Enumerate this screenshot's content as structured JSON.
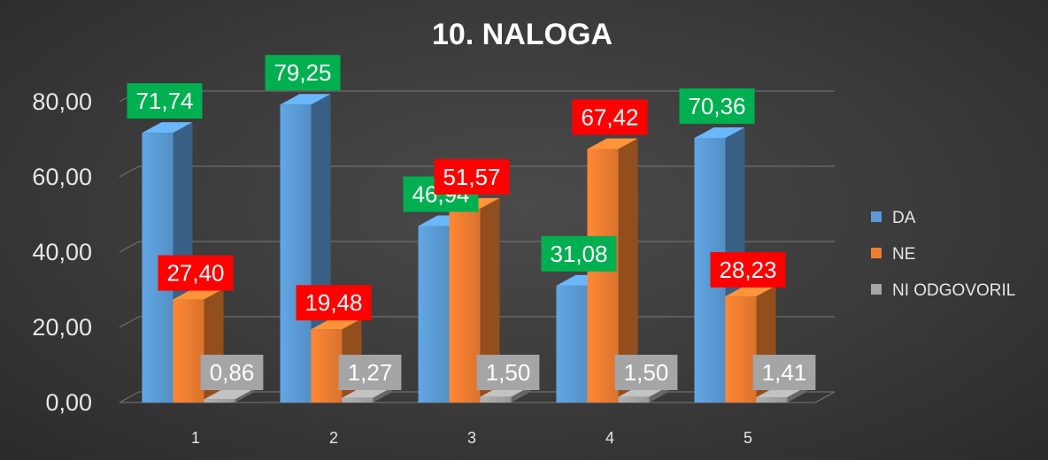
{
  "chart_data": {
    "type": "bar",
    "title": "10. NALOGA",
    "categories": [
      "1",
      "2",
      "3",
      "4",
      "5"
    ],
    "series": [
      {
        "name": "DA",
        "values": [
          71.74,
          79.25,
          46.94,
          31.08,
          70.36
        ],
        "color": "#5b9bd5",
        "label_color": "#00b050"
      },
      {
        "name": "NE",
        "values": [
          27.4,
          19.48,
          51.57,
          67.42,
          28.23
        ],
        "color": "#ed7d31",
        "label_color": "#ff0000"
      },
      {
        "name": "NI ODGOVORIL",
        "values": [
          0.86,
          1.27,
          1.5,
          1.5,
          1.41
        ],
        "color": "#a5a5a5",
        "label_color": "#a5a5a5"
      }
    ],
    "data_labels": [
      [
        "71,74",
        "27,40",
        "0,86"
      ],
      [
        "79,25",
        "19,48",
        "1,27"
      ],
      [
        "46,94",
        "51,57",
        "1,50"
      ],
      [
        "31,08",
        "67,42",
        "1,50"
      ],
      [
        "70,36",
        "28,23",
        "1,41"
      ]
    ],
    "ytick_labels": [
      "0,00",
      "20,00",
      "40,00",
      "60,00",
      "80,00"
    ],
    "ytick_values": [
      0,
      20,
      40,
      60,
      80
    ],
    "ylim": [
      0,
      80
    ],
    "grid": true,
    "legend_position": "right",
    "background": "#3c3c3c"
  }
}
